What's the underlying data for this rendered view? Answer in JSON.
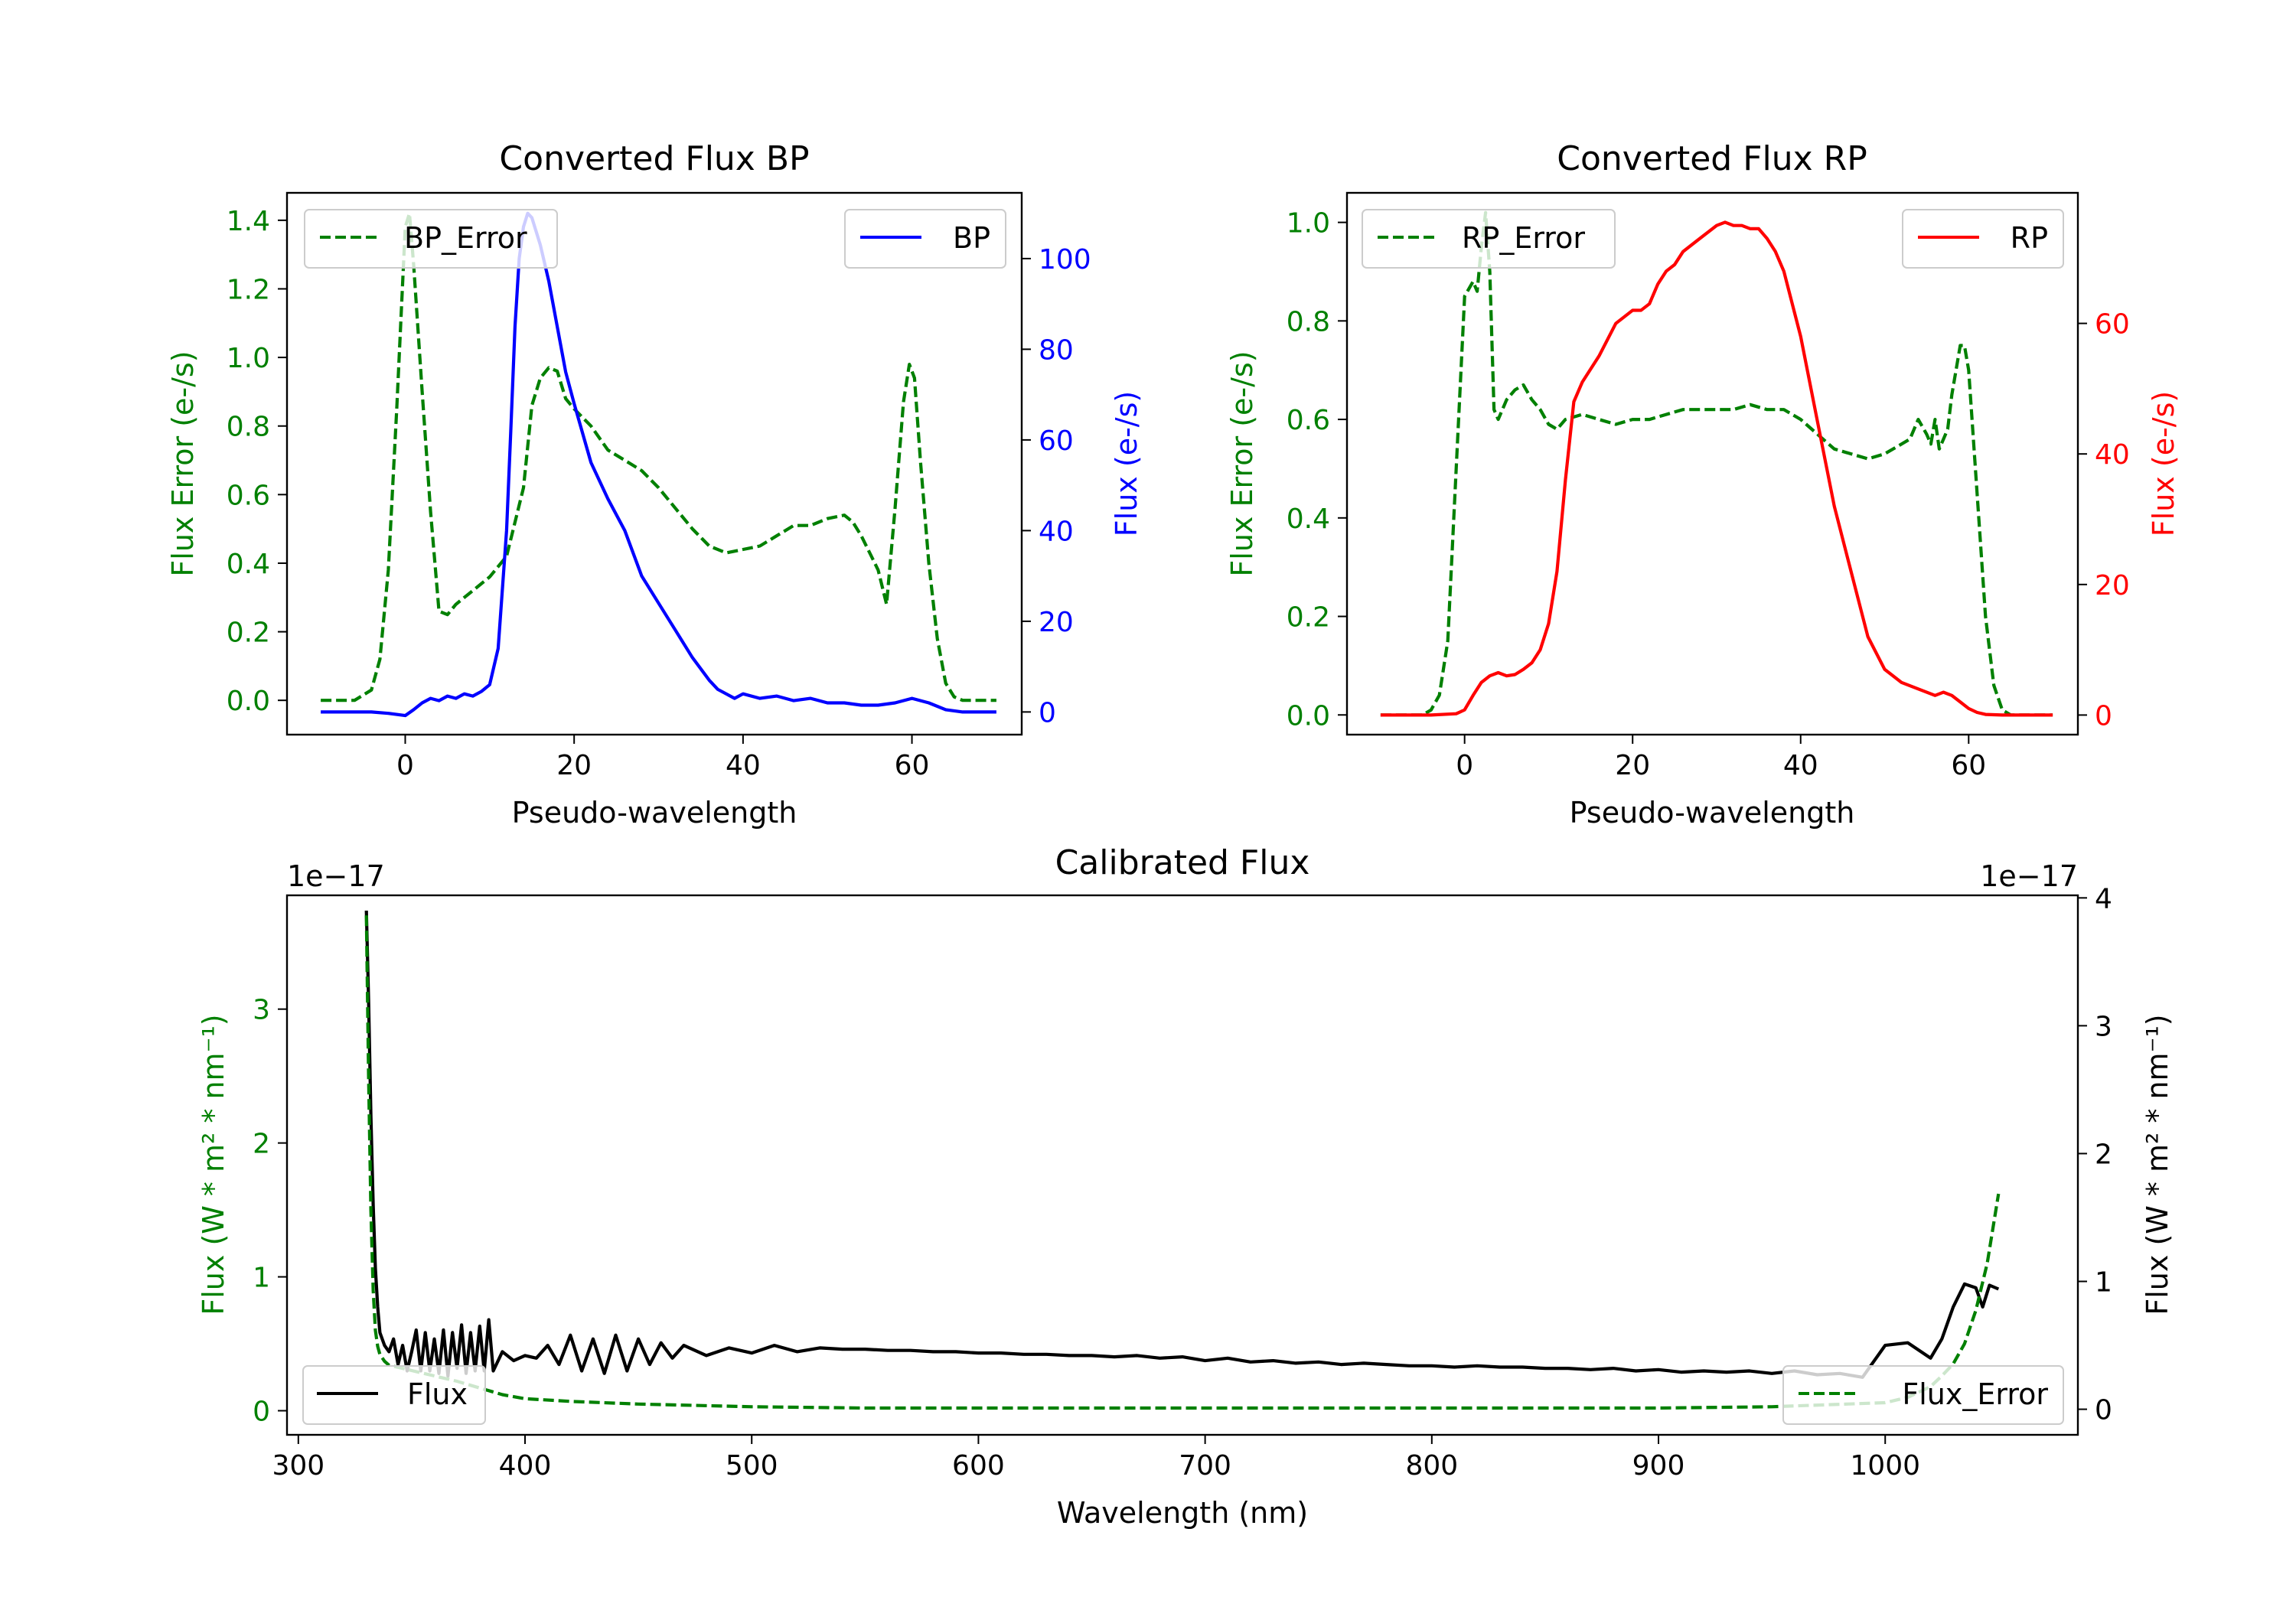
{
  "colors": {
    "green": "#008000",
    "blue": "#0000ff",
    "red": "#ff0000",
    "black": "#000000"
  },
  "chart_data": [
    {
      "id": "bp",
      "type": "line",
      "title": "Converted Flux BP",
      "xlabel": "Pseudo-wavelength",
      "ylabel_left": "Flux Error (e-/s)",
      "ylabel_right": "Flux (e-/s)",
      "xlim": [
        -14,
        73
      ],
      "ylim_left": [
        -0.1,
        1.48
      ],
      "ylim_right": [
        -5,
        114.5
      ],
      "xticks": [
        "0",
        "20",
        "40",
        "60"
      ],
      "yticks_left": [
        "0.0",
        "0.2",
        "0.4",
        "0.6",
        "0.8",
        "1.0",
        "1.2",
        "1.4"
      ],
      "yticks_right": [
        "0",
        "20",
        "40",
        "60",
        "80",
        "100"
      ],
      "legend_left": {
        "label": "BP_Error",
        "position": "upper left"
      },
      "legend_right": {
        "label": "BP",
        "position": "upper right"
      },
      "series": [
        {
          "name": "BP_Error",
          "axis": "left",
          "color": "#008000",
          "dashed": true,
          "x": [
            -10,
            -6,
            -4,
            -3,
            -2,
            -1,
            0,
            0.5,
            1,
            2,
            3,
            4,
            5,
            6,
            8,
            10,
            12,
            14,
            15,
            16,
            17,
            18,
            19,
            20,
            22,
            24,
            26,
            28,
            30,
            32,
            34,
            36,
            38,
            40,
            42,
            44,
            46,
            48,
            50,
            52,
            53,
            54,
            55,
            56,
            57,
            58,
            59,
            59.7,
            60.3,
            61,
            62,
            63,
            64,
            65,
            66,
            70
          ],
          "values": [
            0,
            0,
            0.03,
            0.12,
            0.38,
            0.85,
            1.38,
            1.42,
            1.27,
            0.9,
            0.55,
            0.26,
            0.25,
            0.28,
            0.32,
            0.36,
            0.42,
            0.62,
            0.86,
            0.94,
            0.97,
            0.96,
            0.88,
            0.85,
            0.8,
            0.73,
            0.7,
            0.67,
            0.62,
            0.56,
            0.5,
            0.45,
            0.43,
            0.44,
            0.45,
            0.48,
            0.51,
            0.51,
            0.53,
            0.54,
            0.52,
            0.48,
            0.43,
            0.38,
            0.28,
            0.56,
            0.87,
            0.98,
            0.94,
            0.7,
            0.4,
            0.18,
            0.05,
            0.01,
            0,
            0
          ]
        },
        {
          "name": "BP",
          "axis": "right",
          "color": "#0000ff",
          "dashed": false,
          "x": [
            -10,
            -4,
            -2,
            0,
            1,
            2,
            3,
            4,
            5,
            6,
            7,
            8,
            9,
            10,
            11,
            12,
            12.5,
            13,
            13.5,
            14,
            14.5,
            15,
            16,
            17,
            18,
            19,
            20,
            22,
            24,
            26,
            28,
            30,
            32,
            34,
            36,
            37,
            38,
            39,
            40,
            42,
            44,
            46,
            48,
            50,
            52,
            54,
            56,
            58,
            60,
            62,
            64,
            66,
            70
          ],
          "values": [
            0,
            0,
            -0.3,
            -0.8,
            0.5,
            2,
            3,
            2.5,
            3.5,
            3,
            4,
            3.5,
            4.5,
            6,
            14,
            40,
            62,
            85,
            100,
            107,
            110,
            109,
            103,
            95,
            85,
            75,
            68,
            55,
            47,
            40,
            30,
            24,
            18,
            12,
            7,
            5,
            4,
            3,
            4,
            3,
            3.5,
            2.5,
            3,
            2,
            2,
            1.5,
            1.5,
            2,
            3,
            2,
            0.5,
            0,
            0
          ]
        }
      ]
    },
    {
      "id": "rp",
      "type": "line",
      "title": "Converted Flux RP",
      "xlabel": "Pseudo-wavelength",
      "ylabel_left": "Flux Error (e-/s)",
      "ylabel_right": "Flux (e-/s)",
      "xlim": [
        -14,
        73
      ],
      "ylim_left": [
        -0.04,
        1.06
      ],
      "ylim_right": [
        -3,
        80
      ],
      "xticks": [
        "0",
        "20",
        "40",
        "60"
      ],
      "yticks_left": [
        "0.0",
        "0.2",
        "0.4",
        "0.6",
        "0.8",
        "1.0"
      ],
      "yticks_right": [
        "0",
        "20",
        "40",
        "60"
      ],
      "legend_left": {
        "label": "RP_Error",
        "position": "upper left"
      },
      "legend_right": {
        "label": "RP",
        "position": "upper right"
      },
      "series": [
        {
          "name": "RP_Error",
          "axis": "left",
          "color": "#008000",
          "dashed": true,
          "x": [
            -10,
            -5,
            -4,
            -3,
            -2,
            -1,
            0,
            1,
            1.5,
            2,
            2.5,
            3,
            3.5,
            4,
            5,
            6,
            7,
            8,
            9,
            10,
            11,
            12,
            14,
            16,
            18,
            20,
            22,
            24,
            26,
            28,
            30,
            32,
            34,
            36,
            38,
            40,
            42,
            44,
            46,
            48,
            50,
            52,
            53,
            54,
            55,
            55.5,
            56,
            56.5,
            57,
            57.5,
            58,
            59,
            59.5,
            60,
            61,
            62,
            63,
            64,
            65,
            70
          ],
          "values": [
            0,
            0,
            0.01,
            0.04,
            0.15,
            0.5,
            0.85,
            0.88,
            0.86,
            0.95,
            1.02,
            0.9,
            0.62,
            0.6,
            0.64,
            0.66,
            0.67,
            0.64,
            0.62,
            0.59,
            0.58,
            0.6,
            0.61,
            0.6,
            0.59,
            0.6,
            0.6,
            0.61,
            0.62,
            0.62,
            0.62,
            0.62,
            0.63,
            0.62,
            0.62,
            0.6,
            0.57,
            0.54,
            0.53,
            0.52,
            0.53,
            0.55,
            0.56,
            0.6,
            0.57,
            0.55,
            0.6,
            0.54,
            0.56,
            0.58,
            0.65,
            0.75,
            0.75,
            0.7,
            0.45,
            0.2,
            0.06,
            0.01,
            0,
            0
          ]
        },
        {
          "name": "RP",
          "axis": "right",
          "color": "#ff0000",
          "dashed": false,
          "x": [
            -10,
            -4,
            -1,
            0,
            1,
            2,
            3,
            4,
            5,
            6,
            7,
            8,
            9,
            10,
            11,
            12,
            13,
            14,
            16,
            18,
            19,
            20,
            21,
            22,
            23,
            24,
            25,
            26,
            27,
            28,
            29,
            30,
            31,
            32,
            33,
            34,
            35,
            36,
            37,
            38,
            40,
            42,
            44,
            46,
            48,
            50,
            52,
            54,
            56,
            57,
            58,
            59,
            60,
            61,
            62,
            64,
            70
          ],
          "values": [
            0,
            0,
            0.2,
            0.8,
            3,
            5,
            6,
            6.5,
            6,
            6.2,
            7,
            8,
            10,
            14,
            22,
            36,
            48,
            51,
            55,
            60,
            61,
            62,
            62,
            63,
            66,
            68,
            69,
            71,
            72,
            73,
            74,
            75,
            75.5,
            75,
            75,
            74.5,
            74.5,
            73,
            71,
            68,
            58,
            45,
            32,
            22,
            12,
            7,
            5,
            4,
            3,
            3.5,
            3,
            2,
            1,
            0.4,
            0.1,
            0,
            0
          ]
        }
      ]
    },
    {
      "id": "calibrated",
      "type": "line",
      "title": "Calibrated Flux",
      "xlabel": "Wavelength (nm)",
      "ylabel_left": "Flux (W * m² * nm⁻¹)",
      "ylabel_right": "Flux (W * m² * nm⁻¹)",
      "offset_left": "1e−17",
      "offset_right": "1e−17",
      "xlim": [
        295,
        1085
      ],
      "ylim_left": [
        -0.18,
        3.85
      ],
      "ylim_right": [
        -0.2,
        4.02
      ],
      "xticks": [
        "300",
        "400",
        "500",
        "600",
        "700",
        "800",
        "900",
        "1000"
      ],
      "yticks_left": [
        "0",
        "1",
        "2",
        "3"
      ],
      "yticks_right": [
        "0",
        "1",
        "2",
        "3",
        "4"
      ],
      "legend_left": {
        "label": "Flux",
        "position": "lower left"
      },
      "legend_right": {
        "label": "Flux_Error",
        "position": "lower right"
      },
      "series": [
        {
          "name": "Flux",
          "axis": "right",
          "color": "#000000",
          "dashed": false,
          "x": [
            330,
            331,
            332,
            333,
            334,
            335,
            336,
            338,
            340,
            342,
            344,
            346,
            348,
            350,
            352,
            354,
            356,
            358,
            360,
            362,
            364,
            366,
            368,
            370,
            372,
            374,
            376,
            378,
            380,
            382,
            384,
            386,
            390,
            395,
            400,
            405,
            410,
            415,
            420,
            425,
            430,
            435,
            440,
            445,
            450,
            455,
            460,
            465,
            470,
            480,
            490,
            500,
            510,
            520,
            530,
            540,
            550,
            560,
            570,
            580,
            590,
            600,
            610,
            620,
            630,
            640,
            650,
            660,
            670,
            680,
            690,
            700,
            710,
            720,
            730,
            740,
            750,
            760,
            770,
            780,
            790,
            800,
            810,
            820,
            830,
            840,
            850,
            860,
            870,
            880,
            890,
            900,
            910,
            920,
            930,
            940,
            950,
            960,
            970,
            980,
            990,
            1000,
            1010,
            1020,
            1025,
            1030,
            1035,
            1040,
            1043,
            1046,
            1050
          ],
          "values": [
            3.9,
            3.2,
            2.3,
            1.6,
            1.1,
            0.8,
            0.6,
            0.5,
            0.45,
            0.55,
            0.35,
            0.5,
            0.3,
            0.45,
            0.62,
            0.3,
            0.6,
            0.3,
            0.55,
            0.28,
            0.62,
            0.26,
            0.6,
            0.32,
            0.66,
            0.28,
            0.6,
            0.3,
            0.65,
            0.3,
            0.7,
            0.3,
            0.45,
            0.38,
            0.42,
            0.4,
            0.5,
            0.35,
            0.58,
            0.3,
            0.55,
            0.28,
            0.58,
            0.3,
            0.55,
            0.35,
            0.52,
            0.4,
            0.5,
            0.42,
            0.48,
            0.44,
            0.5,
            0.45,
            0.48,
            0.47,
            0.47,
            0.46,
            0.46,
            0.45,
            0.45,
            0.44,
            0.44,
            0.43,
            0.43,
            0.42,
            0.42,
            0.41,
            0.42,
            0.4,
            0.41,
            0.38,
            0.4,
            0.37,
            0.38,
            0.36,
            0.37,
            0.35,
            0.36,
            0.35,
            0.34,
            0.34,
            0.33,
            0.34,
            0.33,
            0.33,
            0.32,
            0.32,
            0.31,
            0.32,
            0.3,
            0.31,
            0.29,
            0.3,
            0.29,
            0.3,
            0.28,
            0.3,
            0.27,
            0.28,
            0.25,
            0.5,
            0.52,
            0.4,
            0.55,
            0.8,
            0.98,
            0.95,
            0.8,
            0.97,
            0.94
          ]
        },
        {
          "name": "Flux_Error",
          "axis": "left",
          "color": "#008000",
          "dashed": true,
          "x": [
            330,
            331,
            332,
            333,
            334,
            335,
            336,
            338,
            340,
            345,
            350,
            360,
            370,
            380,
            390,
            400,
            420,
            450,
            500,
            550,
            600,
            650,
            700,
            750,
            800,
            850,
            900,
            950,
            1000,
            1010,
            1020,
            1025,
            1030,
            1035,
            1040,
            1045,
            1050
          ],
          "values": [
            3.7,
            2.5,
            1.5,
            0.9,
            0.6,
            0.48,
            0.42,
            0.37,
            0.34,
            0.32,
            0.3,
            0.26,
            0.22,
            0.17,
            0.12,
            0.09,
            0.07,
            0.05,
            0.03,
            0.02,
            0.02,
            0.02,
            0.02,
            0.02,
            0.02,
            0.02,
            0.02,
            0.03,
            0.06,
            0.1,
            0.18,
            0.26,
            0.35,
            0.5,
            0.75,
            1.1,
            1.62
          ]
        }
      ]
    }
  ]
}
